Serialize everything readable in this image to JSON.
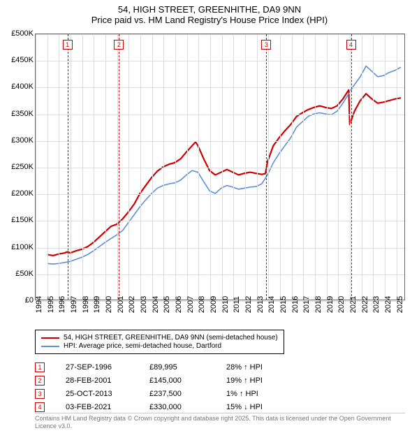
{
  "title_line1": "54, HIGH STREET, GREENHITHE, DA9 9NN",
  "title_line2": "Price paid vs. HM Land Registry's House Price Index (HPI)",
  "chart": {
    "type": "line",
    "background_color": "#ffffff",
    "grid_color": "#dddddd",
    "axis_color": "#666666",
    "x_start": 1994,
    "x_end": 2025.8,
    "x_ticks": [
      1994,
      1995,
      1996,
      1997,
      1998,
      1999,
      2000,
      2001,
      2002,
      2003,
      2004,
      2005,
      2006,
      2007,
      2008,
      2009,
      2010,
      2011,
      2012,
      2013,
      2014,
      2015,
      2016,
      2017,
      2018,
      2019,
      2020,
      2021,
      2022,
      2023,
      2024,
      2025
    ],
    "y_min": 0,
    "y_max": 500000,
    "y_step": 50000,
    "y_tick_labels": [
      "£0",
      "£50K",
      "£100K",
      "£150K",
      "£200K",
      "£250K",
      "£300K",
      "£350K",
      "£400K",
      "£450K",
      "£500K"
    ],
    "series": [
      {
        "name": "property",
        "label": "54, HIGH STREET, GREENHITHE, DA9 9NN (semi-detached house)",
        "color": "#cc0000",
        "width": 2.2,
        "points": [
          [
            1995.0,
            85000
          ],
          [
            1995.5,
            83000
          ],
          [
            1996.0,
            86000
          ],
          [
            1996.5,
            88000
          ],
          [
            1996.74,
            89995
          ],
          [
            1997.0,
            88000
          ],
          [
            1997.5,
            92000
          ],
          [
            1998.0,
            95000
          ],
          [
            1998.5,
            100000
          ],
          [
            1999.0,
            108000
          ],
          [
            1999.5,
            118000
          ],
          [
            2000.0,
            128000
          ],
          [
            2000.5,
            138000
          ],
          [
            2001.0,
            142000
          ],
          [
            2001.16,
            145000
          ],
          [
            2001.5,
            152000
          ],
          [
            2002.0,
            165000
          ],
          [
            2002.5,
            180000
          ],
          [
            2003.0,
            200000
          ],
          [
            2003.5,
            215000
          ],
          [
            2004.0,
            230000
          ],
          [
            2004.5,
            242000
          ],
          [
            2005.0,
            250000
          ],
          [
            2005.5,
            255000
          ],
          [
            2006.0,
            258000
          ],
          [
            2006.5,
            265000
          ],
          [
            2007.0,
            278000
          ],
          [
            2007.5,
            290000
          ],
          [
            2007.8,
            297000
          ],
          [
            2008.0,
            290000
          ],
          [
            2008.5,
            265000
          ],
          [
            2009.0,
            243000
          ],
          [
            2009.5,
            235000
          ],
          [
            2010.0,
            240000
          ],
          [
            2010.5,
            245000
          ],
          [
            2011.0,
            240000
          ],
          [
            2011.5,
            235000
          ],
          [
            2012.0,
            238000
          ],
          [
            2012.5,
            240000
          ],
          [
            2013.0,
            238000
          ],
          [
            2013.5,
            236000
          ],
          [
            2013.82,
            237500
          ],
          [
            2014.0,
            260000
          ],
          [
            2014.5,
            290000
          ],
          [
            2015.0,
            305000
          ],
          [
            2015.5,
            318000
          ],
          [
            2016.0,
            330000
          ],
          [
            2016.5,
            345000
          ],
          [
            2017.0,
            352000
          ],
          [
            2017.5,
            358000
          ],
          [
            2018.0,
            362000
          ],
          [
            2018.5,
            365000
          ],
          [
            2019.0,
            362000
          ],
          [
            2019.5,
            360000
          ],
          [
            2020.0,
            365000
          ],
          [
            2020.5,
            378000
          ],
          [
            2021.0,
            395000
          ],
          [
            2021.09,
            330000
          ],
          [
            2021.5,
            355000
          ],
          [
            2022.0,
            375000
          ],
          [
            2022.5,
            388000
          ],
          [
            2023.0,
            378000
          ],
          [
            2023.5,
            370000
          ],
          [
            2024.0,
            372000
          ],
          [
            2024.5,
            375000
          ],
          [
            2025.0,
            378000
          ],
          [
            2025.5,
            380000
          ]
        ]
      },
      {
        "name": "hpi",
        "label": "HPI: Average price, semi-detached house, Dartford",
        "color": "#5b8fd6",
        "width": 1.6,
        "points": [
          [
            1995.0,
            68000
          ],
          [
            1995.5,
            67000
          ],
          [
            1996.0,
            68000
          ],
          [
            1996.5,
            70000
          ],
          [
            1997.0,
            72000
          ],
          [
            1997.5,
            76000
          ],
          [
            1998.0,
            80000
          ],
          [
            1998.5,
            85000
          ],
          [
            1999.0,
            92000
          ],
          [
            1999.5,
            100000
          ],
          [
            2000.0,
            108000
          ],
          [
            2000.5,
            115000
          ],
          [
            2001.0,
            122000
          ],
          [
            2001.5,
            130000
          ],
          [
            2002.0,
            145000
          ],
          [
            2002.5,
            160000
          ],
          [
            2003.0,
            175000
          ],
          [
            2003.5,
            188000
          ],
          [
            2004.0,
            200000
          ],
          [
            2004.5,
            210000
          ],
          [
            2005.0,
            215000
          ],
          [
            2005.5,
            218000
          ],
          [
            2006.0,
            220000
          ],
          [
            2006.5,
            225000
          ],
          [
            2007.0,
            235000
          ],
          [
            2007.5,
            243000
          ],
          [
            2008.0,
            240000
          ],
          [
            2008.5,
            222000
          ],
          [
            2009.0,
            205000
          ],
          [
            2009.5,
            200000
          ],
          [
            2010.0,
            210000
          ],
          [
            2010.5,
            215000
          ],
          [
            2011.0,
            212000
          ],
          [
            2011.5,
            208000
          ],
          [
            2012.0,
            210000
          ],
          [
            2012.5,
            212000
          ],
          [
            2013.0,
            213000
          ],
          [
            2013.5,
            218000
          ],
          [
            2014.0,
            235000
          ],
          [
            2014.5,
            258000
          ],
          [
            2015.0,
            275000
          ],
          [
            2015.5,
            290000
          ],
          [
            2016.0,
            305000
          ],
          [
            2016.5,
            325000
          ],
          [
            2017.0,
            335000
          ],
          [
            2017.5,
            345000
          ],
          [
            2018.0,
            350000
          ],
          [
            2018.5,
            352000
          ],
          [
            2019.0,
            350000
          ],
          [
            2019.5,
            348000
          ],
          [
            2020.0,
            355000
          ],
          [
            2020.5,
            370000
          ],
          [
            2021.0,
            388000
          ],
          [
            2021.5,
            405000
          ],
          [
            2022.0,
            420000
          ],
          [
            2022.5,
            440000
          ],
          [
            2023.0,
            430000
          ],
          [
            2023.5,
            420000
          ],
          [
            2024.0,
            422000
          ],
          [
            2024.5,
            428000
          ],
          [
            2025.0,
            432000
          ],
          [
            2025.5,
            438000
          ]
        ]
      }
    ],
    "markers": [
      {
        "num": "1",
        "x": 1996.74
      },
      {
        "num": "2",
        "x": 2001.16
      },
      {
        "num": "3",
        "x": 2013.82
      },
      {
        "num": "4",
        "x": 2021.09
      }
    ]
  },
  "legend": {
    "items": [
      {
        "color": "#cc0000",
        "label": "54, HIGH STREET, GREENHITHE, DA9 9NN (semi-detached house)"
      },
      {
        "color": "#5b8fd6",
        "label": "HPI: Average price, semi-detached house, Dartford"
      }
    ]
  },
  "transactions": [
    {
      "num": "1",
      "date": "27-SEP-1996",
      "price": "£89,995",
      "pct": "28% ↑ HPI"
    },
    {
      "num": "2",
      "date": "28-FEB-2001",
      "price": "£145,000",
      "pct": "19% ↑ HPI"
    },
    {
      "num": "3",
      "date": "25-OCT-2013",
      "price": "£237,500",
      "pct": "1% ↑ HPI"
    },
    {
      "num": "4",
      "date": "03-FEB-2021",
      "price": "£330,000",
      "pct": "15% ↓ HPI"
    }
  ],
  "attribution": "Contains HM Land Registry data © Crown copyright and database right 2025. This data is licensed under the Open Government Licence v3.0."
}
